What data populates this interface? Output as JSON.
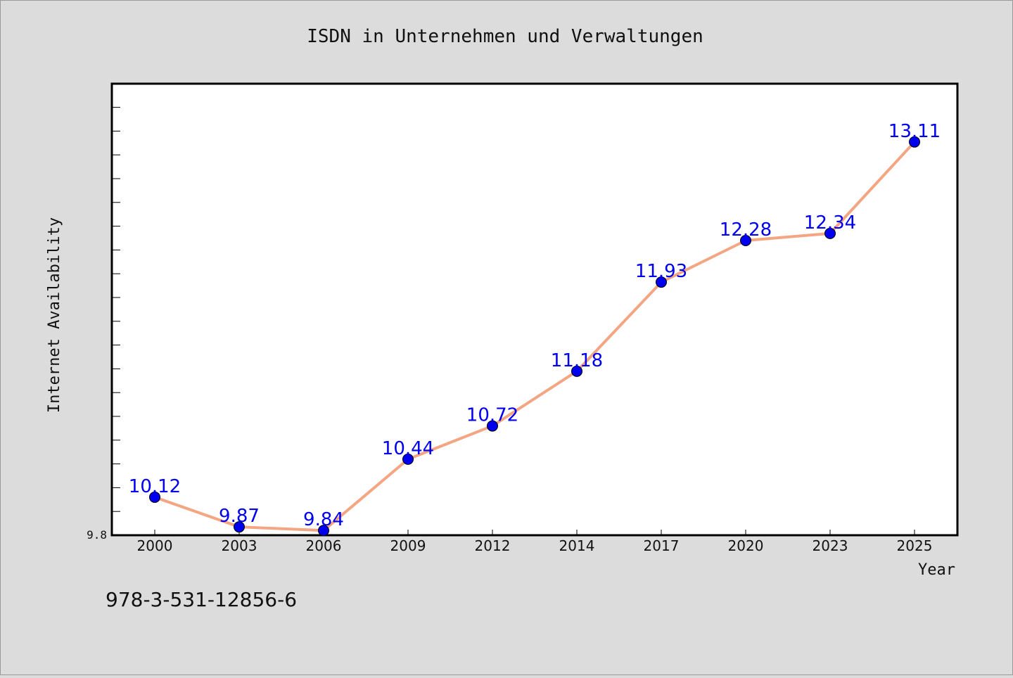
{
  "chart_data": {
    "type": "line",
    "title": "ISDN in Unternehmen und Verwaltungen",
    "xlabel": "Year",
    "ylabel": "Internet Availability",
    "categories": [
      "2000",
      "2003",
      "2006",
      "2009",
      "2012",
      "2014",
      "2017",
      "2020",
      "2023",
      "2025"
    ],
    "series": [
      {
        "values": [
          10.12,
          9.87,
          9.84,
          10.44,
          10.72,
          11.18,
          11.93,
          12.28,
          12.34,
          13.11
        ]
      }
    ],
    "data_labels": [
      "10.12",
      "9.87",
      "9.84",
      "10.44",
      "10.72",
      "11.18",
      "11.93",
      "12.28",
      "12.34",
      "13.11"
    ],
    "ylim": [
      9.8,
      13.6
    ],
    "y_tick_labels": [
      "9.8"
    ],
    "grid": false,
    "colors": {
      "line": "#f4a582",
      "marker": "#0000ee",
      "label": "#0000ee",
      "background": "#dcdcdc",
      "plot_background": "#ffffff"
    }
  },
  "footnote": "978-3-531-12856-6"
}
